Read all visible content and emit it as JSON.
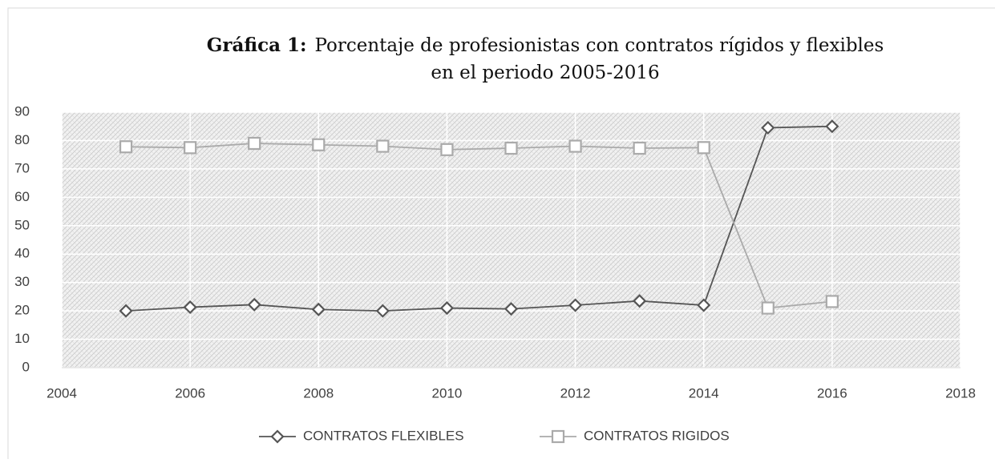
{
  "chart_data": {
    "type": "line",
    "title": {
      "label": "Gráfica 1:",
      "lines": [
        "Porcentaje de profesionistas con contratos rígidos y flexibles",
        "en el periodo 2005-2016"
      ]
    },
    "x": [
      2005,
      2006,
      2007,
      2008,
      2009,
      2010,
      2011,
      2012,
      2013,
      2014,
      2015,
      2016
    ],
    "series": [
      {
        "name": "CONTRATOS FLEXIBLES",
        "color": "#555555",
        "marker": "diamond",
        "values": [
          20,
          21.3,
          22.2,
          20.5,
          20,
          21,
          20.7,
          22,
          23.5,
          22,
          84.5,
          85
        ]
      },
      {
        "name": "CONTRATOS RIGIDOS",
        "color": "#aaaaaa",
        "marker": "square",
        "values": [
          77.8,
          77.5,
          79,
          78.5,
          78,
          76.8,
          77.3,
          78,
          77.3,
          77.5,
          21,
          23.3
        ]
      }
    ],
    "xlim": [
      2004,
      2018
    ],
    "xticks": [
      2004,
      2006,
      2008,
      2010,
      2012,
      2014,
      2016,
      2018
    ],
    "ylim": [
      0,
      90
    ],
    "yticks": [
      0,
      10,
      20,
      30,
      40,
      50,
      60,
      70,
      80,
      90
    ],
    "grid": true,
    "legend": "bottom"
  }
}
